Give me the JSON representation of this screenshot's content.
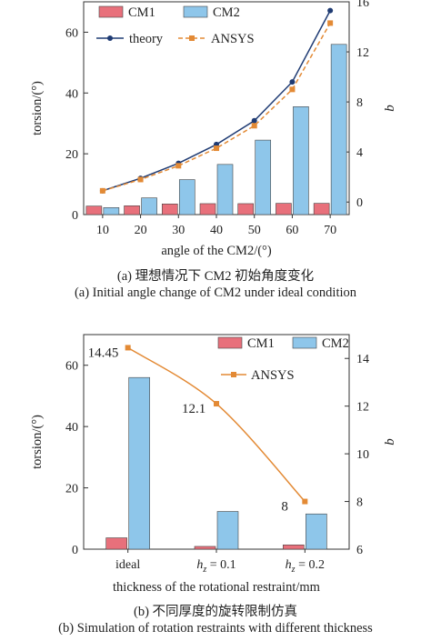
{
  "chart_data": [
    {
      "type": "bar",
      "categories": [
        "10",
        "20",
        "30",
        "40",
        "50",
        "60",
        "70"
      ],
      "xlabel": "angle of the CM2/(°)",
      "ylabel": "torsion/(°)",
      "y2label": "b",
      "ylim": [
        0,
        70
      ],
      "y2lim": [
        -1,
        16
      ],
      "yticks": [
        "0",
        "20",
        "40",
        "60"
      ],
      "y2ticks": [
        "0",
        "4",
        "8",
        "12",
        "16"
      ],
      "series": [
        {
          "name": "CM1",
          "type": "bar",
          "axis": "left",
          "values": [
            2.8,
            2.9,
            3.5,
            3.6,
            3.6,
            3.7,
            3.7
          ],
          "color": "#e8707b"
        },
        {
          "name": "CM2",
          "type": "bar",
          "axis": "left",
          "values": [
            2.3,
            5.5,
            11.5,
            16.5,
            24.5,
            35.5,
            56.0
          ],
          "color": "#8ec6ea"
        },
        {
          "name": "theory",
          "type": "line",
          "axis": "right",
          "values": [
            0.9,
            1.9,
            3.1,
            4.6,
            6.5,
            9.6,
            15.3
          ],
          "color": "#1f3b73"
        },
        {
          "name": "ANSYS",
          "type": "line",
          "axis": "right",
          "values": [
            0.9,
            1.8,
            2.9,
            4.3,
            6.1,
            9.0,
            14.3
          ],
          "color": "#e38a35"
        }
      ],
      "legend": "top-left",
      "caption_cn": "(a) 理想情况下 CM2 初始角度变化",
      "caption_en": "(a) Initial angle change of CM2 under ideal condition"
    },
    {
      "type": "bar",
      "categories": [
        "ideal",
        "hz = 0.1",
        "hz = 0.2"
      ],
      "xlabel": "thickness of the rotational restraint/mm",
      "ylabel": "torsion/(°)",
      "y2label": "b",
      "ylim": [
        0,
        70
      ],
      "y2lim": [
        6,
        15
      ],
      "yticks": [
        "0",
        "20",
        "40",
        "60"
      ],
      "y2ticks": [
        "6",
        "8",
        "10",
        "12",
        "14"
      ],
      "series": [
        {
          "name": "CM1",
          "type": "bar",
          "axis": "left",
          "values": [
            3.7,
            0.9,
            1.4
          ],
          "color": "#e8707b"
        },
        {
          "name": "CM2",
          "type": "bar",
          "axis": "left",
          "values": [
            56.0,
            12.3,
            11.5
          ],
          "color": "#8ec6ea"
        },
        {
          "name": "ANSYS",
          "type": "line",
          "axis": "right",
          "values": [
            14.45,
            12.1,
            8
          ],
          "color": "#e38a35"
        }
      ],
      "annotations": [
        "14.45",
        "12.1",
        "8"
      ],
      "legend": "top-right",
      "caption_cn": "(b) 不同厚度的旋转限制仿真",
      "caption_en": "(b) Simulation of rotation restraints with different thickness"
    }
  ]
}
